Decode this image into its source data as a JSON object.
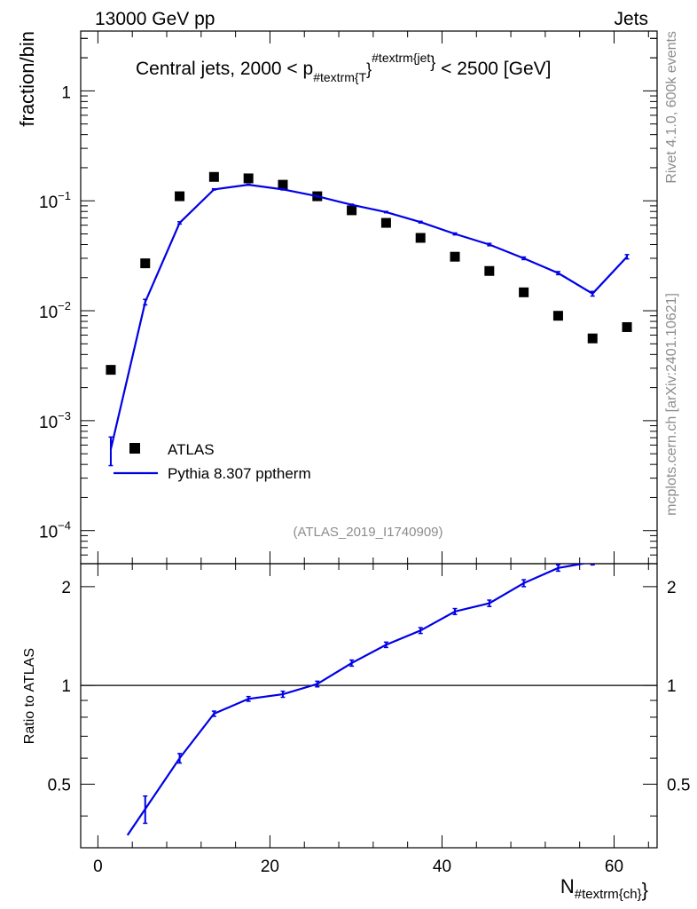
{
  "header": {
    "left": "13000 GeV pp",
    "right": "Jets"
  },
  "side": {
    "rivet": "Rivet 4.1.0,  600k events",
    "mcplots": "mcplots.cern.ch [arXiv:2401.10621]"
  },
  "chart_data": {
    "type": "scatter",
    "title": {
      "main": "Central jets, 2000 < p",
      "sub": "#textrm{T",
      "sup": "#textrm{jet",
      "brace1": "}",
      "brace2": "}",
      "tail": " < 2500 [GeV]"
    },
    "watermark": "(ATLAS_2019_I1740909)",
    "ylabel": "fraction/bin",
    "ratio_ylabel": "Ratio to ATLAS",
    "xlabel": {
      "main": "N",
      "sub": "#textrm{ch}",
      "brace": "}"
    },
    "xlim": [
      -2,
      65
    ],
    "ylim": [
      5e-05,
      3.5
    ],
    "ratio_ylim": [
      0.32,
      2.35
    ],
    "x_ticks": [
      {
        "value": 0,
        "label": "0"
      },
      {
        "value": 20,
        "label": "20"
      },
      {
        "value": 40,
        "label": "40"
      },
      {
        "value": 60,
        "label": "60"
      }
    ],
    "y_ticks": [
      {
        "value": 1,
        "base": "1",
        "exp": ""
      },
      {
        "value": 0.1,
        "base": "10",
        "exp": "−1"
      },
      {
        "value": 0.01,
        "base": "10",
        "exp": "−2"
      },
      {
        "value": 0.001,
        "base": "10",
        "exp": "−3"
      },
      {
        "value": 0.0001,
        "base": "10",
        "exp": "−4"
      }
    ],
    "ratio_y_ticks": [
      {
        "value": 0.5,
        "label": "0.5"
      },
      {
        "value": 1,
        "label": "1"
      },
      {
        "value": 2,
        "label": "2"
      }
    ],
    "legend": [
      {
        "name": "ATLAS",
        "style": "marker"
      },
      {
        "name": "Pythia 8.307 pptherm",
        "style": "line"
      }
    ],
    "x": [
      1.5,
      5.5,
      9.5,
      13.5,
      17.5,
      21.5,
      25.5,
      29.5,
      33.5,
      37.5,
      41.5,
      45.5,
      49.5,
      53.5,
      57.5,
      61.5
    ],
    "series": [
      {
        "name": "ATLAS",
        "values": [
          0.0029,
          0.027,
          0.11,
          0.165,
          0.16,
          0.14,
          0.11,
          0.082,
          0.063,
          0.046,
          0.031,
          0.023,
          0.0147,
          0.009,
          0.0056,
          0.0071
        ]
      },
      {
        "name": "Pythia 8.307 pptherm",
        "color": "#0000e6",
        "values": [
          0.00055,
          0.012,
          0.063,
          0.127,
          0.14,
          0.127,
          0.11,
          0.092,
          0.079,
          0.064,
          0.05,
          0.04,
          0.03,
          0.022,
          0.0143,
          0.031
        ],
        "err_low": [
          0.00039,
          0.0113,
          0.0615,
          0.1255,
          0.1385,
          0.1255,
          0.1088,
          0.0908,
          0.0779,
          0.0629,
          0.049,
          0.039,
          0.0292,
          0.0213,
          0.0136,
          0.0296
        ],
        "err_high": [
          0.00071,
          0.0127,
          0.0645,
          0.1285,
          0.1415,
          0.1285,
          0.1112,
          0.0932,
          0.0801,
          0.0651,
          0.051,
          0.041,
          0.0308,
          0.0227,
          0.015,
          0.0324
        ]
      }
    ],
    "ratio": {
      "x": [
        5.5,
        9.5,
        13.5,
        17.5,
        21.5,
        25.5,
        29.5,
        33.5,
        37.5,
        41.5,
        45.5,
        49.5,
        53.5,
        57.5
      ],
      "values": [
        0.42,
        0.6,
        0.82,
        0.91,
        0.94,
        1.01,
        1.17,
        1.33,
        1.47,
        1.68,
        1.78,
        2.05,
        2.28,
        2.38
      ],
      "err": [
        0.04,
        0.02,
        0.015,
        0.015,
        0.02,
        0.02,
        0.025,
        0.025,
        0.03,
        0.035,
        0.04,
        0.05,
        0.05,
        0.05
      ]
    }
  }
}
